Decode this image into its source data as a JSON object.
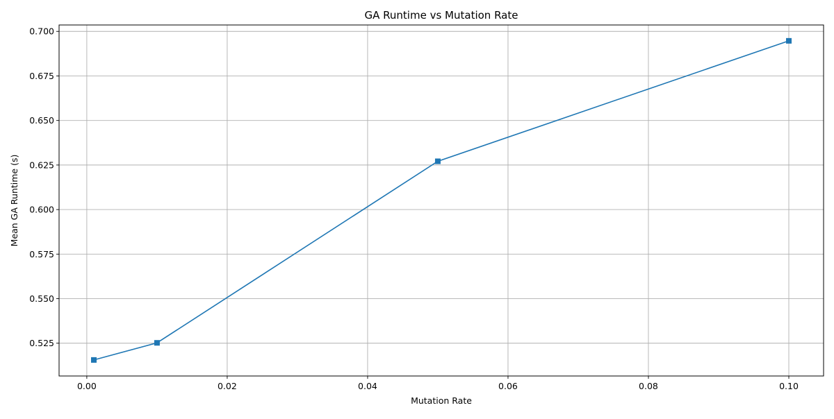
{
  "chart_data": {
    "type": "line",
    "title": "GA Runtime vs Mutation Rate",
    "xlabel": "Mutation Rate",
    "ylabel": "Mean GA Runtime (s)",
    "xlim": [
      -0.00395,
      0.10495
    ],
    "ylim": [
      0.5066,
      0.7036
    ],
    "x_ticks": [
      0.0,
      0.02,
      0.04,
      0.06,
      0.08,
      0.1
    ],
    "x_tick_labels": [
      "0.00",
      "0.02",
      "0.04",
      "0.06",
      "0.08",
      "0.10"
    ],
    "y_ticks": [
      0.525,
      0.55,
      0.575,
      0.6,
      0.625,
      0.65,
      0.675,
      0.7
    ],
    "y_tick_labels": [
      "0.525",
      "0.550",
      "0.575",
      "0.600",
      "0.625",
      "0.650",
      "0.675",
      "0.700"
    ],
    "grid": true,
    "legend": "none",
    "series": [
      {
        "x": [
          0.001,
          0.01,
          0.05,
          0.1
        ],
        "y": [
          0.5156,
          0.5252,
          0.6271,
          0.6947
        ],
        "color": "#1f77b4",
        "marker": "square"
      }
    ]
  }
}
